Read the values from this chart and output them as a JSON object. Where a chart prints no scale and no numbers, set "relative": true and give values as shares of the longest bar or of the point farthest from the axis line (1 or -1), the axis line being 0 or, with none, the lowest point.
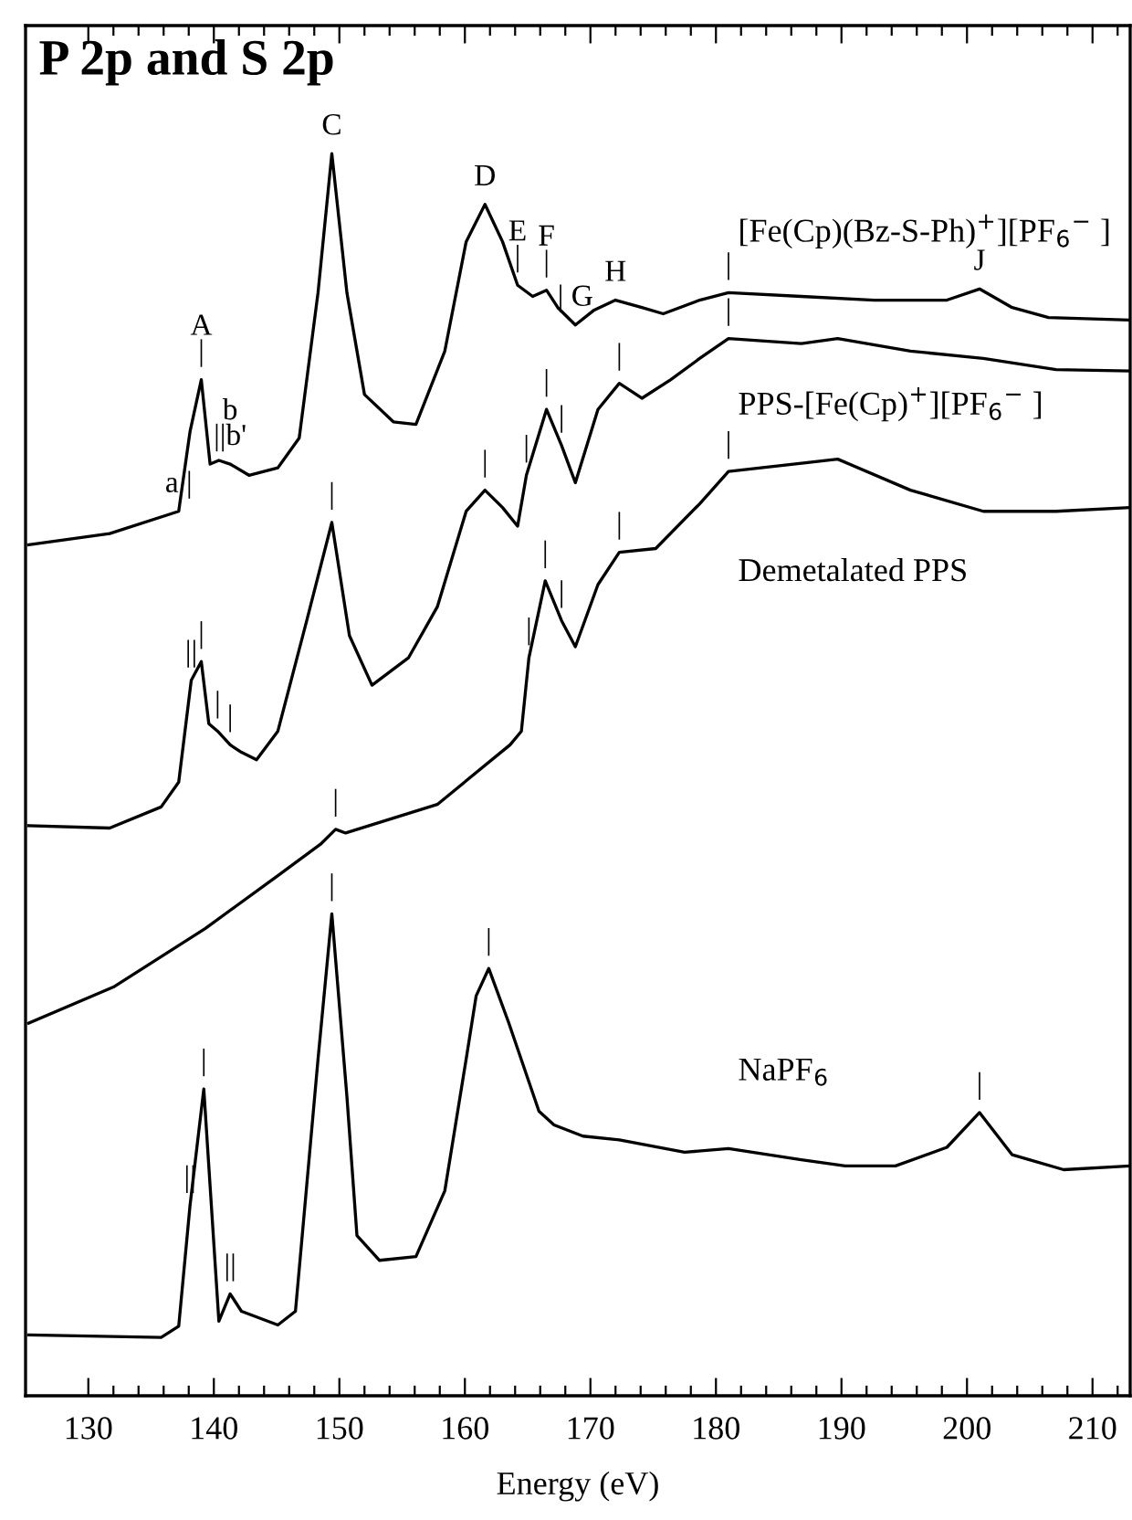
{
  "chart_data": {
    "type": "line",
    "title": "P 2p and S 2p",
    "xlabel": "Energy (eV)",
    "relative": true,
    "xlim": [
      125,
      213
    ],
    "xticks": [
      130,
      {
        "value": 132,
        "label": null
      },
      {
        "value": 134,
        "label": null
      },
      {
        "value": 136,
        "label": null
      },
      {
        "value": 138,
        "label": null
      },
      140,
      {
        "value": 142,
        "label": null
      },
      {
        "value": 144,
        "label": null
      },
      {
        "value": 146,
        "label": null
      },
      {
        "value": 148,
        "label": null
      },
      150,
      {
        "value": 152,
        "label": null
      },
      {
        "value": 154,
        "label": null
      },
      {
        "value": 156,
        "label": null
      },
      {
        "value": 158,
        "label": null
      },
      160,
      {
        "value": 162,
        "label": null
      },
      {
        "value": 164,
        "label": null
      },
      {
        "value": 166,
        "label": null
      },
      {
        "value": 168,
        "label": null
      },
      170,
      {
        "value": 172,
        "label": null
      },
      {
        "value": 174,
        "label": null
      },
      {
        "value": 176,
        "label": null
      },
      {
        "value": 178,
        "label": null
      },
      180,
      {
        "value": 182,
        "label": null
      },
      {
        "value": 184,
        "label": null
      },
      {
        "value": 186,
        "label": null
      },
      {
        "value": 188,
        "label": null
      },
      190,
      {
        "value": 192,
        "label": null
      },
      {
        "value": 194,
        "label": null
      },
      {
        "value": 196,
        "label": null
      },
      {
        "value": 198,
        "label": null
      },
      200,
      {
        "value": 202,
        "label": null
      },
      {
        "value": 204,
        "label": null
      },
      {
        "value": 206,
        "label": null
      },
      {
        "value": 208,
        "label": null
      },
      210,
      {
        "value": 212,
        "label": null
      }
    ],
    "grid": false,
    "legend": false,
    "marker": "none",
    "line_style": "solid",
    "series": [
      {
        "name": "[Fe(Cp)(Bz-S-Ph)$^{+}$][PF$_{6}$$^{−}$ ]",
        "color": "#000000",
        "x": [
          125.25,
          131.7,
          137.2,
          138.1,
          139.0,
          139.7,
          140.4,
          141.3,
          142.8,
          145.1,
          146.8,
          148.3,
          149.4,
          150.6,
          152.0,
          154.3,
          156.1,
          158.4,
          160.1,
          161.6,
          163.0,
          164.2,
          165.4,
          166.5,
          167.4,
          168.8,
          170.3,
          172.0,
          174.1,
          175.8,
          178.7,
          181.0,
          186.8,
          192.6,
          198.4,
          201.0,
          203.6,
          206.5,
          212.9
        ],
        "values": [
          0.685,
          0.694,
          0.712,
          0.776,
          0.818,
          0.75,
          0.753,
          0.75,
          0.741,
          0.747,
          0.771,
          0.888,
          1.0,
          0.888,
          0.806,
          0.784,
          0.782,
          0.841,
          0.929,
          0.959,
          0.929,
          0.894,
          0.885,
          0.89,
          0.876,
          0.862,
          0.874,
          0.882,
          0.876,
          0.871,
          0.882,
          0.888,
          0.885,
          0.882,
          0.882,
          0.891,
          0.876,
          0.868,
          0.866
        ]
      },
      {
        "name": "PPS-[Fe(Cp)$^{+}$][PF$_{6}$$^{−}$ ]",
        "color": "#000000",
        "x": [
          125.25,
          131.7,
          135.8,
          137.2,
          138.2,
          139.0,
          139.6,
          140.3,
          141.3,
          142.2,
          143.4,
          145.1,
          147.4,
          149.4,
          150.8,
          152.6,
          155.5,
          157.8,
          160.1,
          161.6,
          163.0,
          164.2,
          164.9,
          166.5,
          167.7,
          168.8,
          170.6,
          172.3,
          174.1,
          176.4,
          178.7,
          181.0,
          186.8,
          189.7,
          195.5,
          201.3,
          207.1,
          212.9
        ],
        "values": [
          0.459,
          0.457,
          0.474,
          0.494,
          0.576,
          0.591,
          0.541,
          0.535,
          0.524,
          0.518,
          0.512,
          0.535,
          0.624,
          0.703,
          0.612,
          0.572,
          0.594,
          0.635,
          0.712,
          0.729,
          0.715,
          0.7,
          0.741,
          0.794,
          0.765,
          0.735,
          0.794,
          0.815,
          0.803,
          0.818,
          0.835,
          0.851,
          0.847,
          0.851,
          0.841,
          0.835,
          0.826,
          0.825
        ]
      },
      {
        "name": "Demetalated PPS",
        "color": "#000000",
        "x": [
          125.25,
          132.0,
          139.3,
          145.0,
          148.5,
          149.7,
          150.5,
          157.8,
          163.6,
          164.5,
          165.1,
          166.4,
          167.7,
          168.8,
          170.6,
          172.3,
          175.2,
          178.7,
          181.0,
          189.7,
          195.5,
          201.3,
          207.1,
          212.9
        ],
        "values": [
          0.3,
          0.329,
          0.376,
          0.418,
          0.444,
          0.456,
          0.453,
          0.476,
          0.524,
          0.535,
          0.594,
          0.656,
          0.624,
          0.603,
          0.653,
          0.679,
          0.682,
          0.718,
          0.744,
          0.754,
          0.729,
          0.712,
          0.712,
          0.715
        ]
      },
      {
        "name": "NaPF$_{6}$",
        "color": "#000000",
        "x": [
          125.25,
          135.8,
          137.2,
          138.1,
          139.2,
          140.4,
          141.3,
          142.2,
          145.1,
          146.5,
          148.3,
          149.4,
          150.6,
          151.4,
          153.2,
          156.1,
          158.4,
          160.1,
          160.9,
          161.9,
          163.5,
          165.9,
          167.1,
          169.4,
          172.3,
          177.5,
          181.0,
          186.8,
          190.3,
          194.3,
          198.4,
          201.0,
          203.6,
          207.7,
          212.9
        ],
        "values": [
          0.049,
          0.047,
          0.056,
          0.153,
          0.247,
          0.06,
          0.082,
          0.068,
          0.057,
          0.068,
          0.271,
          0.388,
          0.241,
          0.129,
          0.109,
          0.112,
          0.165,
          0.271,
          0.322,
          0.344,
          0.3,
          0.229,
          0.218,
          0.209,
          0.206,
          0.196,
          0.199,
          0.19,
          0.185,
          0.185,
          0.2,
          0.228,
          0.194,
          0.182,
          0.185
        ]
      }
    ],
    "annotations": [
      {
        "text": "a |",
        "x": 137.2,
        "y": 0.712
      },
      {
        "text": "A\n|",
        "x": 139.0,
        "y": 0.818
      },
      {
        "text": "b\n||b'",
        "x": 141.3,
        "y": 0.75
      },
      {
        "text": "C",
        "x": 149.4,
        "y": 1.0
      },
      {
        "text": "D",
        "x": 161.6,
        "y": 0.959
      },
      {
        "text": "E\n|",
        "x": 164.2,
        "y": 0.894
      },
      {
        "text": "F\n|",
        "x": 166.5,
        "y": 0.89
      },
      {
        "text": "| G",
        "x": 168.8,
        "y": 0.862
      },
      {
        "text": "H",
        "x": 172.0,
        "y": 0.882
      },
      {
        "text": "|",
        "x": 181.0,
        "y": 0.888
      },
      {
        "text": "J",
        "x": 201.0,
        "y": 0.891
      },
      {
        "text": "||",
        "x": 138.2,
        "y": 0.576
      },
      {
        "text": "|",
        "x": 139.0,
        "y": 0.591
      },
      {
        "text": "|",
        "x": 140.3,
        "y": 0.535
      },
      {
        "text": "|",
        "x": 141.3,
        "y": 0.524
      },
      {
        "text": "|",
        "x": 149.4,
        "y": 0.703
      },
      {
        "text": "|",
        "x": 161.6,
        "y": 0.729
      },
      {
        "text": "|",
        "x": 164.9,
        "y": 0.741
      },
      {
        "text": "|",
        "x": 166.5,
        "y": 0.794
      },
      {
        "text": "|",
        "x": 167.7,
        "y": 0.765
      },
      {
        "text": "|",
        "x": 172.3,
        "y": 0.815
      },
      {
        "text": "|",
        "x": 181.0,
        "y": 0.851
      },
      {
        "text": "|",
        "x": 149.7,
        "y": 0.456
      },
      {
        "text": "|",
        "x": 165.1,
        "y": 0.594
      },
      {
        "text": "|",
        "x": 166.4,
        "y": 0.656
      },
      {
        "text": "|",
        "x": 167.7,
        "y": 0.624
      },
      {
        "text": "|",
        "x": 172.3,
        "y": 0.679
      },
      {
        "text": "|",
        "x": 181.0,
        "y": 0.744
      },
      {
        "text": "||",
        "x": 138.1,
        "y": 0.153
      },
      {
        "text": "|",
        "x": 139.2,
        "y": 0.247
      },
      {
        "text": "||",
        "x": 141.3,
        "y": 0.082
      },
      {
        "text": "|",
        "x": 149.4,
        "y": 0.388
      },
      {
        "text": "|",
        "x": 161.9,
        "y": 0.344
      },
      {
        "text": "|",
        "x": 201.0,
        "y": 0.228
      }
    ]
  }
}
